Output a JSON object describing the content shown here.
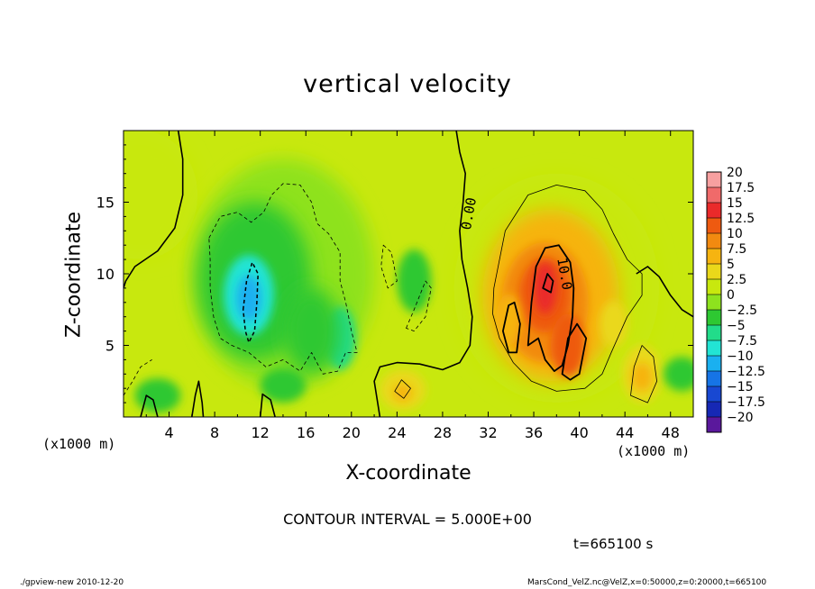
{
  "chart_data": {
    "type": "heatmap",
    "title": "vertical velocity",
    "xlabel": "X-coordinate",
    "ylabel": "Z-coordinate",
    "x_unit": "(x1000 m)",
    "xlim": [
      0,
      50
    ],
    "ylim": [
      0,
      20
    ],
    "x_ticks": [
      4,
      8,
      12,
      16,
      20,
      24,
      28,
      32,
      36,
      40,
      44,
      48
    ],
    "y_ticks": [
      5,
      10,
      15
    ],
    "colorbar": {
      "levels": [
        "20",
        "17.5",
        "15",
        "12.5",
        "10",
        "7.5",
        "5",
        "2.5",
        "0",
        "-2.5",
        "-5",
        "-7.5",
        "-10",
        "-12.5",
        "-15",
        "-17.5",
        "-20"
      ],
      "colors": [
        "#f7a0a0",
        "#f06a6a",
        "#ea2a2a",
        "#ee5a10",
        "#f28a10",
        "#f6b410",
        "#ead81a",
        "#c8e80e",
        "#8ee21e",
        "#2ec832",
        "#22dc8a",
        "#22e4d4",
        "#1ab0f0",
        "#1674e6",
        "#1848d2",
        "#1628b4",
        "#5a189c"
      ],
      "note": "colors listed from 17.5-20 band down to -17.5 to -20 band"
    },
    "contour_labels": [
      "0.00",
      "10.0"
    ],
    "contour_interval": "CONTOUR INTERVAL = 5.000E+00",
    "features": [
      {
        "kind": "updraft",
        "x": 37,
        "z": 8.5,
        "peak": 12.5
      },
      {
        "kind": "updraft",
        "x": 39,
        "z": 5,
        "peak": 11
      },
      {
        "kind": "updraft",
        "x": 45.5,
        "z": 2.8,
        "peak": 7.5
      },
      {
        "kind": "updraft",
        "x": 24.5,
        "z": 1.7,
        "peak": 5.5
      },
      {
        "kind": "downdraft",
        "x": 11,
        "z": 8.3,
        "peak": -11
      },
      {
        "kind": "downdraft",
        "x": 19,
        "z": 5.5,
        "peak": -7
      }
    ]
  },
  "texts": {
    "contour": "CONTOUR INTERVAL = 5.000E+00",
    "time": "t=665100 s",
    "footer_left": "./gpview-new   2010-12-20",
    "footer_right": "MarsCond_VelZ.nc@VelZ,x=0:50000,z=0:20000,t=665100"
  }
}
